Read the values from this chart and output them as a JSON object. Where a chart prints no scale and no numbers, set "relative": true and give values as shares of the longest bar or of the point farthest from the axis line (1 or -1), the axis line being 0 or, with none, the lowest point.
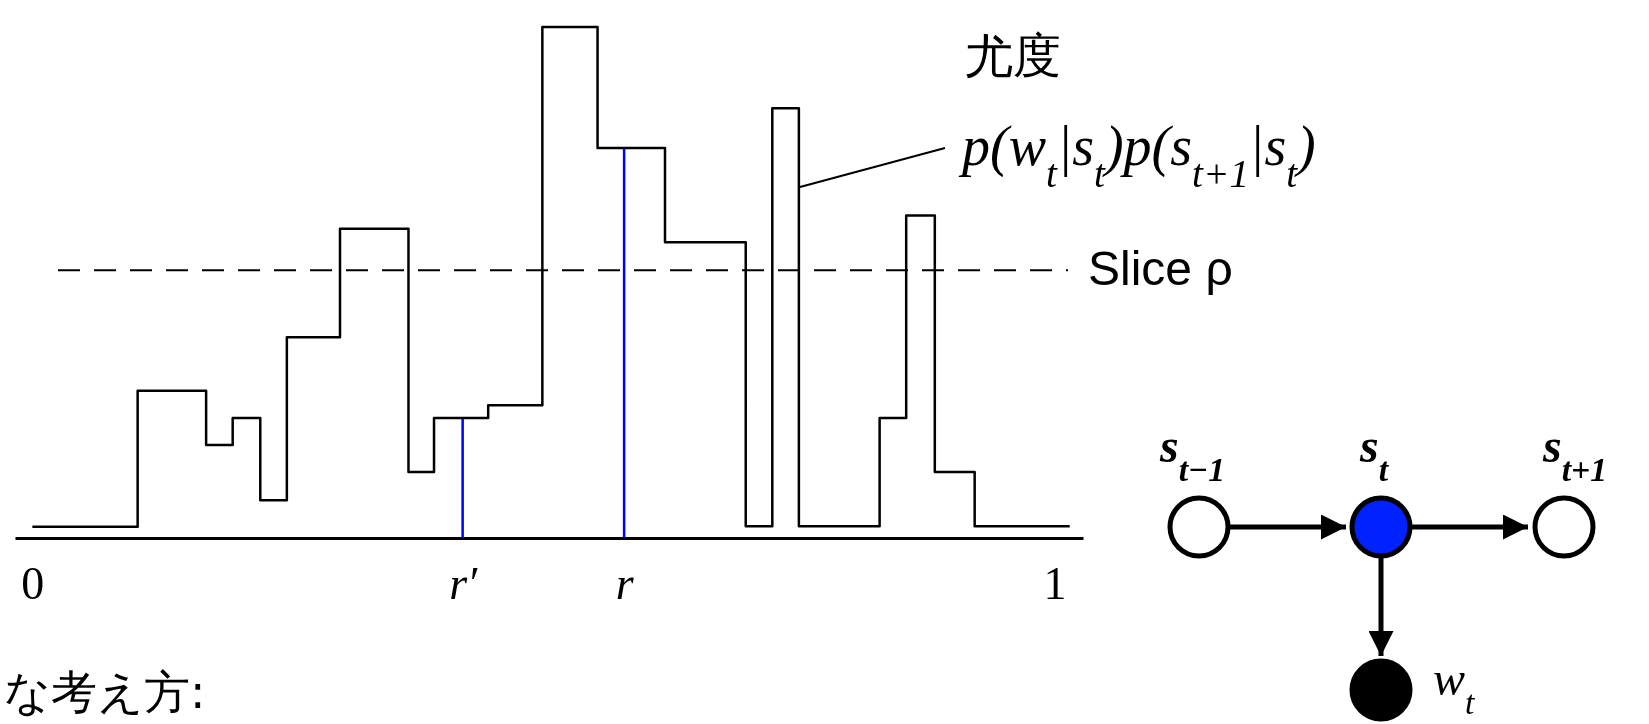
{
  "chart_data": {
    "type": "step",
    "relative": true,
    "x": [
      0,
      0.103,
      0.17,
      0.196,
      0.223,
      0.249,
      0.301,
      0.368,
      0.393,
      0.446,
      0.499,
      0.553,
      0.619,
      0.698,
      0.724,
      0.75,
      0.829,
      0.855,
      0.883,
      0.922,
      1.015
    ],
    "values": [
      0.022,
      0.288,
      0.182,
      0.235,
      0.074,
      0.393,
      0.605,
      0.129,
      0.235,
      0.26,
      1,
      0.763,
      0.579,
      0.023,
      0.841,
      0.023,
      0.235,
      0.631,
      0.129,
      0.023,
      0.023
    ],
    "color": "#000000",
    "marker": "none",
    "xlim": [
      -0.017,
      1.028
    ],
    "xticks": [
      0,
      {
        "value": 0.421,
        "label": "r′"
      },
      {
        "value": 0.579,
        "label": "r"
      },
      1
    ],
    "ref_lines": [
      {
        "axis": "y",
        "value": 0.524,
        "label": "Slice ρ",
        "color": "#000000",
        "line_style": "dashed"
      },
      {
        "axis": "x",
        "value": 0.421,
        "color": "#0000ff"
      },
      {
        "axis": "x",
        "value": 0.579,
        "color": "#0000ff"
      }
    ],
    "annotations": [
      "尤度",
      "p(w$_{t}$|s$_{t}$)p(s$_{t+1}$|s$_{t}$)",
      "な考え方:",
      "s$_{t−1}$",
      "s$_{t}$",
      "s$_{t+1}$",
      "w$_{t}$"
    ]
  }
}
